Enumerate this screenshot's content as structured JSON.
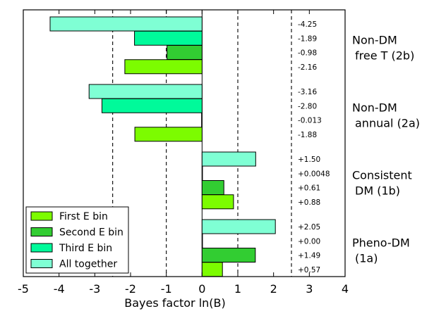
{
  "chart_data": {
    "type": "bar",
    "orientation": "horizontal",
    "xlabel": "Bayes factor ln(B)",
    "xlim": [
      -5,
      4
    ],
    "xticks": [
      "-5",
      "-4",
      "-3",
      "-2",
      "-1",
      "0",
      "1",
      "2",
      "3",
      "4"
    ],
    "reference_lines": [
      -2.5,
      -1,
      1,
      2.5
    ],
    "grid": false,
    "legend_placement": "bottom-left",
    "series": [
      {
        "name": "First E bin",
        "color": "#7cfc00"
      },
      {
        "name": "Second E bin",
        "color": "#32cd32"
      },
      {
        "name": "Third E bin",
        "color": "#00fa9a"
      },
      {
        "name": "All together",
        "color": "#7fffd4"
      }
    ],
    "groups": [
      {
        "label_line1": "Non-DM",
        "label_line2": "free T (2b)",
        "bars": [
          {
            "series": "All together",
            "value": -4.25,
            "label": "-4.25"
          },
          {
            "series": "Third E bin",
            "value": -1.89,
            "label": "-1.89"
          },
          {
            "series": "Second E bin",
            "value": -0.98,
            "label": "-0.98"
          },
          {
            "series": "First E bin",
            "value": -2.16,
            "label": "-2.16"
          }
        ]
      },
      {
        "label_line1": "Non-DM",
        "label_line2": "annual (2a)",
        "bars": [
          {
            "series": "All together",
            "value": -3.16,
            "label": "-3.16"
          },
          {
            "series": "Third E bin",
            "value": -2.8,
            "label": "-2.80"
          },
          {
            "series": "Second E bin",
            "value": -0.013,
            "label": "-0.013"
          },
          {
            "series": "First E bin",
            "value": -1.88,
            "label": "-1.88"
          }
        ]
      },
      {
        "label_line1": "Consistent",
        "label_line2": "DM (1b)",
        "bars": [
          {
            "series": "All together",
            "value": 1.5,
            "label": "+1.50"
          },
          {
            "series": "Third E bin",
            "value": 0.0048,
            "label": "+0.0048"
          },
          {
            "series": "Second E bin",
            "value": 0.61,
            "label": "+0.61"
          },
          {
            "series": "First E bin",
            "value": 0.88,
            "label": "+0.88"
          }
        ]
      },
      {
        "label_line1": "Pheno-DM",
        "label_line2": "(1a)",
        "bars": [
          {
            "series": "All together",
            "value": 2.05,
            "label": "+2.05"
          },
          {
            "series": "Third E bin",
            "value": 0.0,
            "label": "+0.00"
          },
          {
            "series": "Second E bin",
            "value": 1.49,
            "label": "+1.49"
          },
          {
            "series": "First E bin",
            "value": 0.57,
            "label": "+0.57"
          }
        ]
      }
    ]
  }
}
